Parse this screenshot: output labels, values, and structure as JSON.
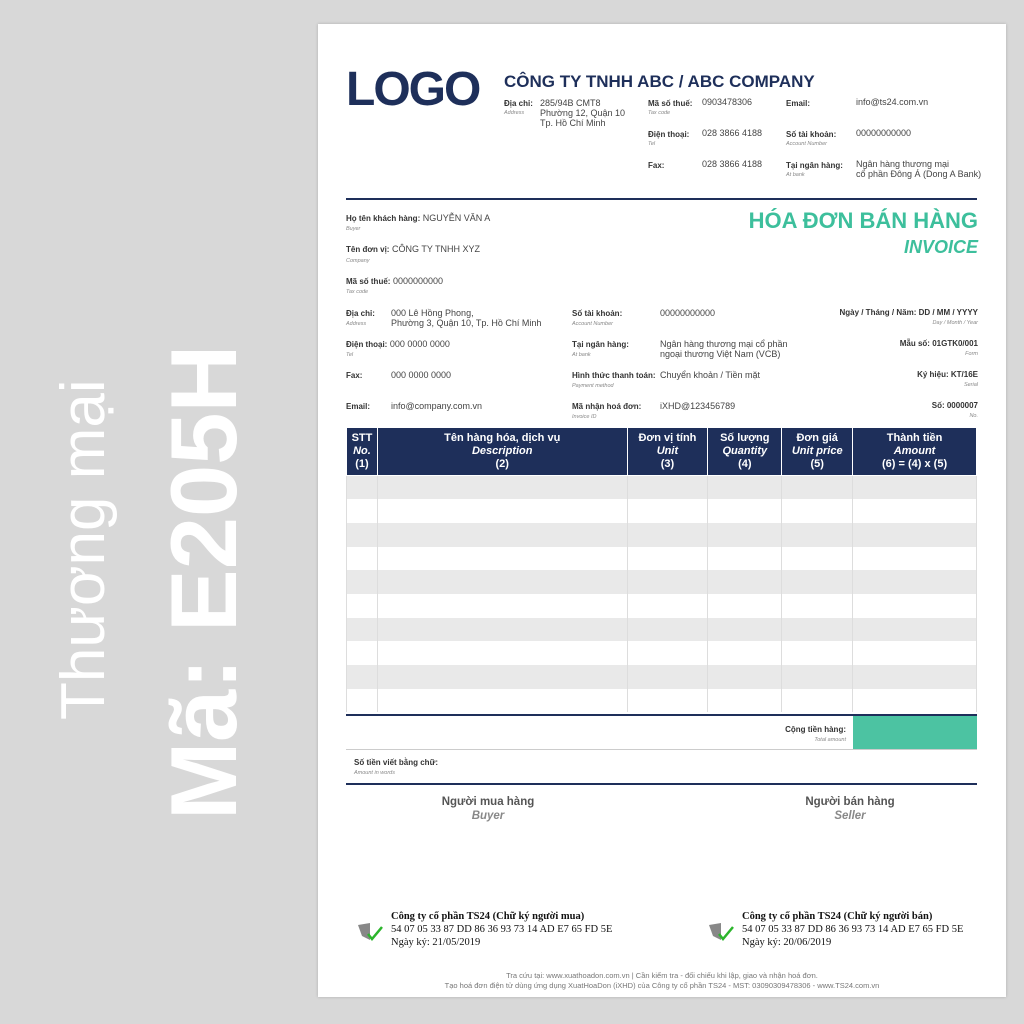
{
  "side": {
    "line1": "Thương mại",
    "line2": "Mã: E205H"
  },
  "seller": {
    "logo": "LOGO",
    "company": "CÔNG TY TNHH ABC / ABC COMPANY",
    "address_label": "Địa chỉ:",
    "address_sub": "Address",
    "address": [
      "285/94B CMT8",
      "Phường 12, Quận 10",
      "Tp. Hồ Chí Minh"
    ],
    "tax_label": "Mã số thuế:",
    "tax_sub": "Tax code",
    "tax": "0903478306",
    "tel_label": "Điện thoại:",
    "tel_sub": "Tel",
    "tel": "028 3866 4188",
    "fax_label": "Fax:",
    "fax": "028 3866 4188",
    "email_label": "Email:",
    "email": "info@ts24.com.vn",
    "acc_label": "Số tài khoản:",
    "acc_sub": "Account Number",
    "acc": "00000000000",
    "bank_label": "Tại ngân hàng:",
    "bank_sub": "At bank",
    "bank": [
      "Ngân hàng thương mại",
      "cổ phần Đông Á (Dong A Bank)"
    ]
  },
  "title": {
    "vi": "HÓA ĐƠN BÁN HÀNG",
    "en": "INVOICE"
  },
  "buyer": {
    "name_label": "Họ tên khách hàng:",
    "name_sub": "Buyer",
    "name": "NGUYỄN VĂN A",
    "company_label": "Tên đơn vị:",
    "company_sub": "Company",
    "company": "CÔNG TY TNHH XYZ",
    "tax_label": "Mã số thuế:",
    "tax_sub": "Tax code",
    "tax": "0000000000",
    "address_label": "Địa chỉ:",
    "address_sub": "Address",
    "address": [
      "000 Lê Hồng Phong,",
      "Phường 3, Quận 10, Tp. Hồ Chí Minh"
    ],
    "tel_label": "Điện thoại:",
    "tel_sub": "Tel",
    "tel": "000 0000 0000",
    "fax_label": "Fax:",
    "fax": "000 0000 0000",
    "email_label": "Email:",
    "email": "info@company.com.vn",
    "acc_label": "Số tài khoản:",
    "acc_sub": "Account Number",
    "acc": "00000000000",
    "bank_label": "Tại ngân hàng:",
    "bank_sub": "At bank",
    "bank": [
      "Ngân hàng thương mại cổ phần",
      "ngoại thương Việt Nam (VCB)"
    ],
    "pay_label": "Hình thức thanh toán:",
    "pay_sub": "Payment method",
    "pay": "Chuyển khoản / Tiền mặt",
    "id_label": "Mã nhận hoá đơn:",
    "id_sub": "Invoice ID",
    "id": "iXHD@123456789"
  },
  "meta": {
    "date_label": "Ngày / Tháng / Năm: DD / MM / YYYY",
    "date_sub": "Day / Month / Year",
    "form_label": "Mẫu số: 01GTK0/001",
    "form_sub": "Form",
    "serial_label": "Ký hiệu: KT/16E",
    "serial_sub": "Serial",
    "no_label": "Số: 0000007",
    "no_sub": "No."
  },
  "table": {
    "headers": [
      {
        "vi": "STT",
        "en": "No.",
        "n": "(1)"
      },
      {
        "vi": "Tên hàng hóa, dịch vụ",
        "en": "Description",
        "n": "(2)"
      },
      {
        "vi": "Đơn vị tính",
        "en": "Unit",
        "n": "(3)"
      },
      {
        "vi": "Số lượng",
        "en": "Quantity",
        "n": "(4)"
      },
      {
        "vi": "Đơn giá",
        "en": "Unit price",
        "n": "(5)"
      },
      {
        "vi": "Thành tiền",
        "en": "Amount",
        "n": "(6) = (4) x (5)"
      }
    ]
  },
  "totals": {
    "total_label": "Cộng tiền hàng:",
    "total_sub": "Total amount",
    "words_label": "Số tiền viết bằng chữ:",
    "words_sub": "Amount in words",
    "accent": "#4cc3a2"
  },
  "signatures": {
    "buyer_vi": "Người mua hàng",
    "buyer_en": "Buyer",
    "seller_vi": "Người bán hàng",
    "seller_en": "Seller",
    "buyer_sig": [
      "Công ty cổ phần TS24 (Chữ ký người mua)",
      "54 07 05 33 87 DD 86 36 93 73 14 AD E7 65 FD 5E",
      "Ngày ký: 21/05/2019"
    ],
    "seller_sig": [
      "Công ty cổ phần TS24 (Chữ ký người bán)",
      "54 07 05 33 87 DD 86 36 93 73 14 AD E7 65 FD 5E",
      "Ngày ký: 20/06/2019"
    ]
  },
  "footer": {
    "line1": "Tra cứu tại: www.xuathoadon.com.vn   |   Cần kiểm tra - đối chiếu khi lập, giao và nhận hoá đơn.",
    "line2": "Tạo hoá đơn điện tử dùng ứng dụng XuatHoaDon (iXHD) của Công ty cổ phần TS24 - MST: 03090309478306 - www.TS24.com.vn"
  }
}
